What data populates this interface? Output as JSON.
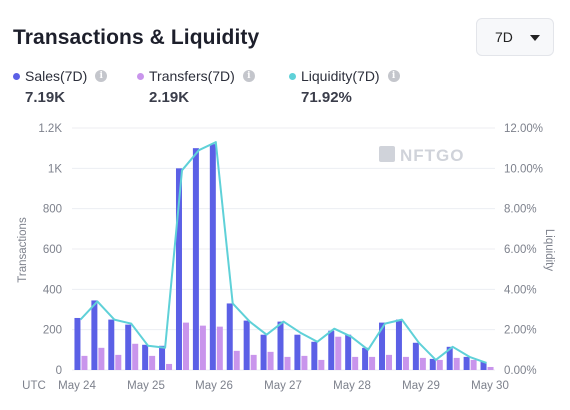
{
  "title": "Transactions & Liquidity",
  "range_select": {
    "value": "7D"
  },
  "metrics": [
    {
      "label": "Sales(7D)",
      "value": "7.19K",
      "color": "#5b60e6"
    },
    {
      "label": "Transfers(7D)",
      "value": "2.19K",
      "color": "#c995ec"
    },
    {
      "label": "Liquidity(7D)",
      "value": "71.92%",
      "color": "#5fd1d8"
    }
  ],
  "watermark": "NFTGO",
  "chart_data": {
    "type": "bar",
    "x_labels": [
      "UTC",
      "May 24",
      "May 25",
      "May 26",
      "May 27",
      "May 28",
      "May 29",
      "May 30"
    ],
    "y_left": {
      "label": "Transactions",
      "ticks": [
        "0",
        "200",
        "400",
        "600",
        "800",
        "1K",
        "1.2K"
      ],
      "min": 0,
      "max": 1200
    },
    "y_right": {
      "label": "Liquidity",
      "ticks": [
        "0.00%",
        "2.00%",
        "4.00%",
        "6.00%",
        "8.00%",
        "10.00%",
        "12.00%"
      ],
      "min": 0,
      "max": 12
    },
    "series": [
      {
        "name": "Sales",
        "type": "bar",
        "color": "#5b60e6",
        "values": [
          258,
          345,
          250,
          225,
          125,
          120,
          1000,
          1100,
          1120,
          330,
          245,
          175,
          240,
          175,
          140,
          195,
          175,
          110,
          235,
          250,
          135,
          55,
          115,
          65,
          40
        ]
      },
      {
        "name": "Transfers",
        "type": "bar",
        "color": "#c995ec",
        "values": [
          70,
          110,
          75,
          130,
          70,
          30,
          235,
          220,
          215,
          95,
          75,
          90,
          65,
          70,
          50,
          165,
          65,
          65,
          75,
          65,
          60,
          50,
          60,
          50,
          15
        ]
      },
      {
        "name": "Liquidity",
        "type": "line",
        "color": "#5fd1d8",
        "values": [
          2.5,
          3.4,
          2.5,
          2.3,
          1.2,
          1.1,
          9.9,
          10.9,
          11.3,
          3.3,
          2.4,
          1.75,
          2.4,
          1.85,
          1.4,
          2.05,
          1.65,
          1.0,
          2.3,
          2.5,
          1.35,
          0.5,
          1.15,
          0.65,
          0.35
        ]
      }
    ]
  }
}
